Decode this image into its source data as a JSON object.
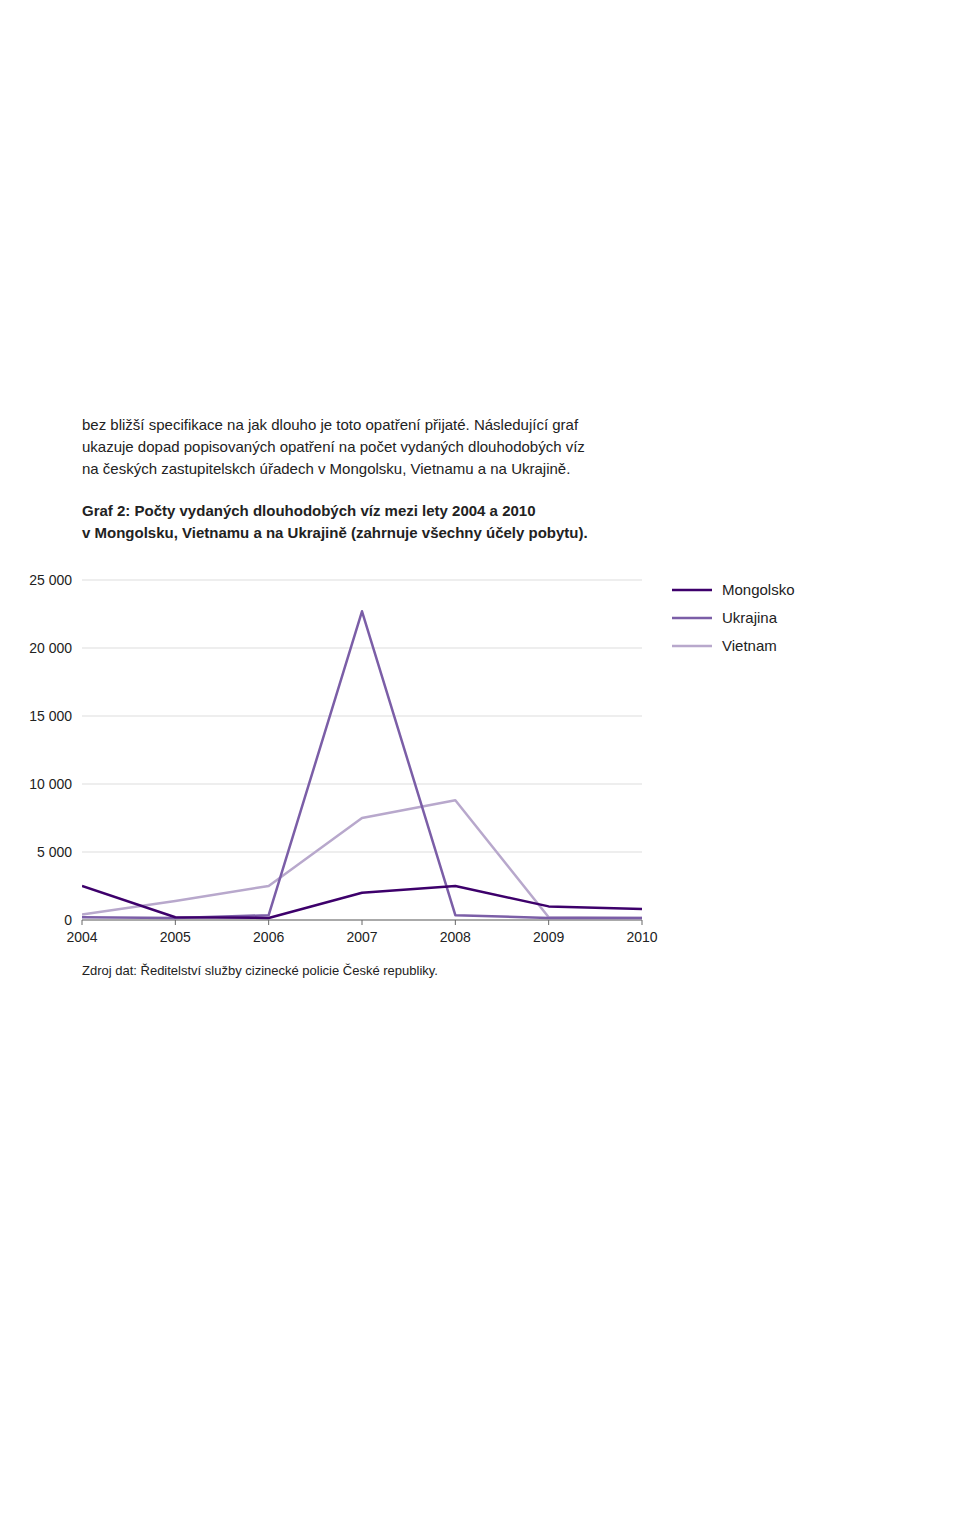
{
  "chart_data": {
    "type": "line",
    "title": [
      "Graf 2: Počty vydaných dlouhodobých víz mezi lety 2004 a 2010",
      "v Mongolsku, Vietnamu a na Ukrajině (zahrnuje všechny účely pobytu)."
    ],
    "annotations": [
      "bez bližší specifikace na jak dlouho je toto opatření přijaté. Následující graf",
      "ukazuje dopad popisovaných opatření na počet vydaných dlouhodobých víz",
      "na českých zastupitelskch úřadech v Mongolsku, Vietnamu a na Ukrajině."
    ],
    "source": "Zdroj dat: Ředitelství služby cizinecké policie České republiky.",
    "x": [
      2004,
      2005,
      2006,
      2007,
      2008,
      2009,
      2010
    ],
    "series": [
      {
        "name": "Mongolsko",
        "color": "#3D006B",
        "values": [
          2500,
          200,
          150,
          2000,
          2500,
          1000,
          800
        ]
      },
      {
        "name": "Ukrajina",
        "color": "#7B5EA7",
        "values": [
          200,
          150,
          350,
          22700,
          350,
          150,
          150
        ]
      },
      {
        "name": "Vietnam",
        "color": "#B8A8CC",
        "values": [
          400,
          1400,
          2500,
          7500,
          8800,
          200,
          150
        ]
      }
    ],
    "xlim": [
      2004,
      2010
    ],
    "xticks": [
      2004,
      2005,
      2006,
      2007,
      2008,
      2009,
      2010
    ],
    "ylim": [
      0,
      25000
    ],
    "yticks": [
      0,
      {
        "value": 5000,
        "label": "5 000"
      },
      {
        "value": 10000,
        "label": "10 000"
      },
      {
        "value": 15000,
        "label": "15 000"
      },
      {
        "value": 20000,
        "label": "20 000"
      },
      {
        "value": 25000,
        "label": "25 000"
      }
    ],
    "grid": true,
    "legend": "right"
  }
}
